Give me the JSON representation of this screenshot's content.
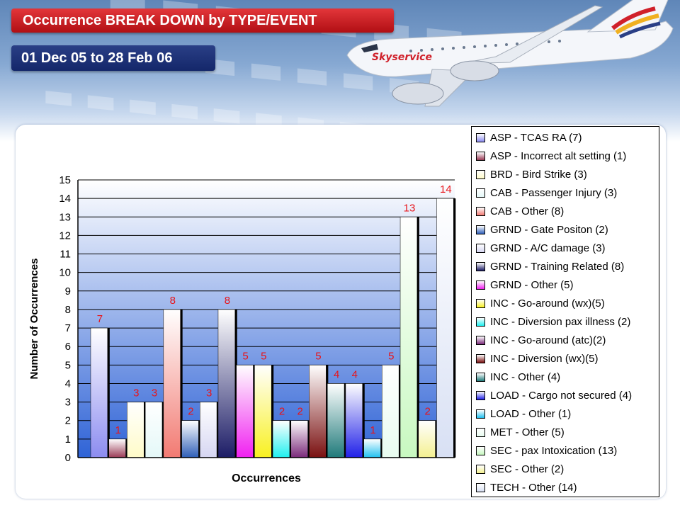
{
  "header": {
    "title": "Occurrence BREAK DOWN by TYPE/EVENT",
    "date_range": "01 Dec 05 to 28 Feb 06",
    "airline_logo_text": "Skyservice"
  },
  "chart_data": {
    "type": "bar",
    "xlabel": "Occurrences",
    "ylabel": "Number of Occurrences",
    "ylim": [
      0,
      15
    ],
    "yticks": [
      0,
      1,
      2,
      3,
      4,
      5,
      6,
      7,
      8,
      9,
      10,
      11,
      12,
      13,
      14,
      15
    ],
    "grid": true,
    "legend_position": "right",
    "data_label_color": "#e8141a",
    "series": [
      {
        "name": "ASP - TCAS RA (7)",
        "value": 7,
        "color": "#8c8cf0"
      },
      {
        "name": "ASP - Incorrect alt setting (1)",
        "value": 1,
        "color": "#9a3a55"
      },
      {
        "name": "BRD - Bird Strike (3)",
        "value": 3,
        "color": "#fffbc8"
      },
      {
        "name": "CAB - Passenger Injury (3)",
        "value": 3,
        "color": "#e4f8f8"
      },
      {
        "name": "CAB - Other (8)",
        "value": 8,
        "color": "#f27a72"
      },
      {
        "name": "GRND - Gate Positon (2)",
        "value": 2,
        "color": "#2f5fb8"
      },
      {
        "name": "GRND - A/C damage (3)",
        "value": 3,
        "color": "#d6d6f2"
      },
      {
        "name": "GRND - Training Related (8)",
        "value": 8,
        "color": "#1c1c66"
      },
      {
        "name": "GRND - Other (5)",
        "value": 5,
        "color": "#f020f0"
      },
      {
        "name": "INC - Go-around (wx)(5)",
        "value": 5,
        "color": "#f8f020"
      },
      {
        "name": "INC - Diversion pax illness (2)",
        "value": 2,
        "color": "#20f0f0"
      },
      {
        "name": "INC - Go-around (atc)(2)",
        "value": 2,
        "color": "#7a2a7a"
      },
      {
        "name": "INC - Diversion (wx)(5)",
        "value": 5,
        "color": "#7a1010"
      },
      {
        "name": "INC - Other (4)",
        "value": 4,
        "color": "#1f7a7a"
      },
      {
        "name": "LOAD - Cargo not secured (4)",
        "value": 4,
        "color": "#2020e8"
      },
      {
        "name": "LOAD - Other (1)",
        "value": 1,
        "color": "#20c0f0"
      },
      {
        "name": "MET - Other (5)",
        "value": 5,
        "color": "#e8fcf0"
      },
      {
        "name": "SEC - pax Intoxication (13)",
        "value": 13,
        "color": "#c8f8c0"
      },
      {
        "name": "SEC - Other (2)",
        "value": 2,
        "color": "#f4f090"
      },
      {
        "name": "TECH - Other (14)",
        "value": 14,
        "color": "#d8e0f4"
      }
    ]
  }
}
